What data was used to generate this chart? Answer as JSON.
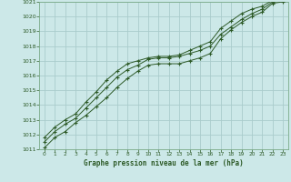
{
  "title": "",
  "xlabel": "Graphe pression niveau de la mer (hPa)",
  "ylabel": "",
  "bg_color": "#cce8e8",
  "grid_color": "#aacccc",
  "line_color": "#2d5a27",
  "xlim": [
    -0.5,
    23.5
  ],
  "ylim": [
    1011,
    1021
  ],
  "xticks": [
    0,
    1,
    2,
    3,
    4,
    5,
    6,
    7,
    8,
    9,
    10,
    11,
    12,
    13,
    14,
    15,
    16,
    17,
    18,
    19,
    20,
    21,
    22,
    23
  ],
  "yticks": [
    1011,
    1012,
    1013,
    1014,
    1015,
    1016,
    1017,
    1018,
    1019,
    1020,
    1021
  ],
  "series": [
    [
      1011.1,
      1011.8,
      1012.2,
      1012.8,
      1013.3,
      1013.9,
      1014.5,
      1015.2,
      1015.8,
      1016.3,
      1016.7,
      1016.8,
      1016.8,
      1016.8,
      1017.0,
      1017.2,
      1017.5,
      1018.5,
      1019.1,
      1019.6,
      1020.0,
      1020.3,
      1020.9,
      1021.0
    ],
    [
      1011.5,
      1012.2,
      1012.7,
      1013.1,
      1013.8,
      1014.5,
      1015.2,
      1015.9,
      1016.4,
      1016.7,
      1017.1,
      1017.2,
      1017.2,
      1017.3,
      1017.5,
      1017.7,
      1018.0,
      1018.8,
      1019.3,
      1019.8,
      1020.2,
      1020.5,
      1021.0,
      1021.1
    ],
    [
      1011.8,
      1012.5,
      1013.0,
      1013.4,
      1014.2,
      1014.9,
      1015.7,
      1016.3,
      1016.8,
      1017.0,
      1017.2,
      1017.3,
      1017.3,
      1017.4,
      1017.7,
      1018.0,
      1018.3,
      1019.2,
      1019.7,
      1020.2,
      1020.5,
      1020.7,
      1021.1,
      1021.2
    ]
  ]
}
